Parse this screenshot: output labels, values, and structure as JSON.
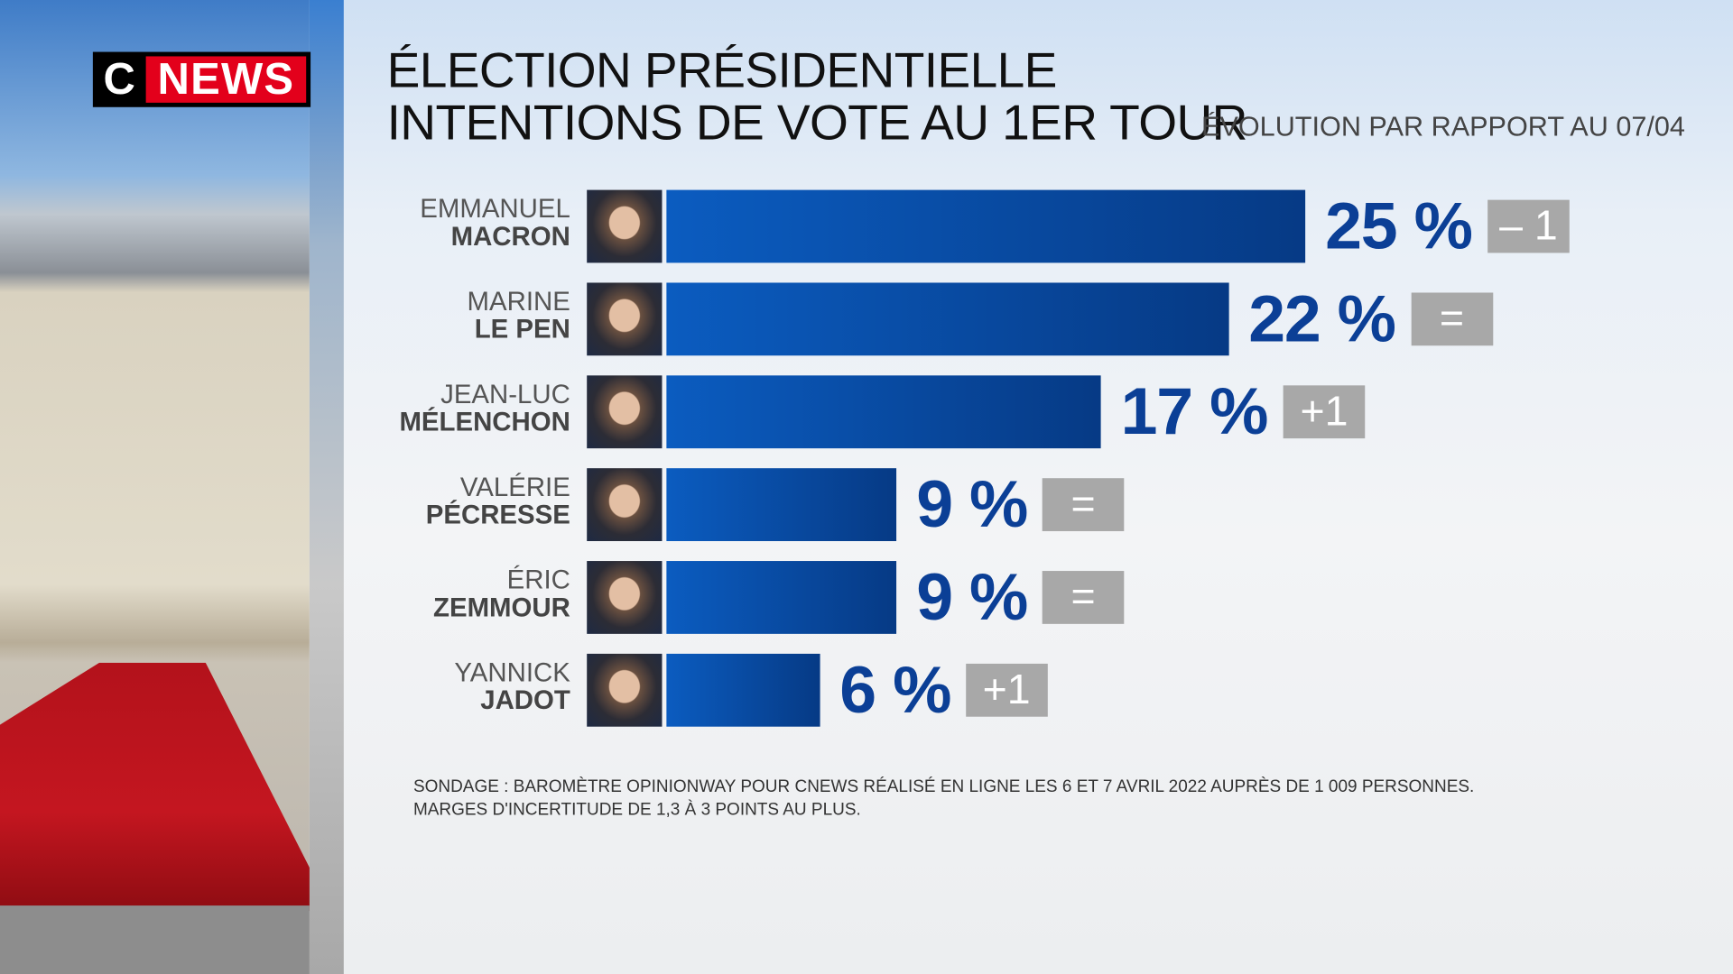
{
  "logo": {
    "c": "C",
    "news": "NEWS"
  },
  "header": {
    "title_line1": "ÉLECTION PRÉSIDENTIELLE",
    "title_line2": "INTENTIONS DE VOTE AU 1ER TOUR",
    "subtitle": "ÉVOLUTION PAR RAPPORT AU 07/04"
  },
  "colors": {
    "bar": "#0b4fa8",
    "value_text": "#0b3f96",
    "badge": "#a8a8a8",
    "brand_red": "#e3001b"
  },
  "chart_data": {
    "type": "bar",
    "orientation": "horizontal",
    "unit": "%",
    "categories": [
      "EMMANUEL MACRON",
      "MARINE LE PEN",
      "JEAN-LUC MÉLENCHON",
      "VALÉRIE PÉCRESSE",
      "ÉRIC ZEMMOUR",
      "YANNICK JADOT"
    ],
    "candidates": [
      {
        "first": "EMMANUEL",
        "last": "MACRON",
        "value": 25,
        "label": "25 %",
        "change": "– 1"
      },
      {
        "first": "MARINE",
        "last": "LE PEN",
        "value": 22,
        "label": "22 %",
        "change": "="
      },
      {
        "first": "JEAN-LUC",
        "last": "MÉLENCHON",
        "value": 17,
        "label": "17 %",
        "change": "+1"
      },
      {
        "first": "VALÉRIE",
        "last": "PÉCRESSE",
        "value": 9,
        "label": "9 %",
        "change": "="
      },
      {
        "first": "ÉRIC",
        "last": "ZEMMOUR",
        "value": 9,
        "label": "9 %",
        "change": "="
      },
      {
        "first": "YANNICK",
        "last": "JADOT",
        "value": 6,
        "label": "6 %",
        "change": "+1"
      }
    ]
  },
  "footnote": {
    "line1": "SONDAGE : BAROMÈTRE OPINIONWAY POUR CNEWS RÉALISÉ EN LIGNE LES 6 ET 7 AVRIL 2022 AUPRÈS DE 1 009 PERSONNES.",
    "line2": "MARGES D'INCERTITUDE DE 1,3 À 3 POINTS AU PLUS."
  }
}
